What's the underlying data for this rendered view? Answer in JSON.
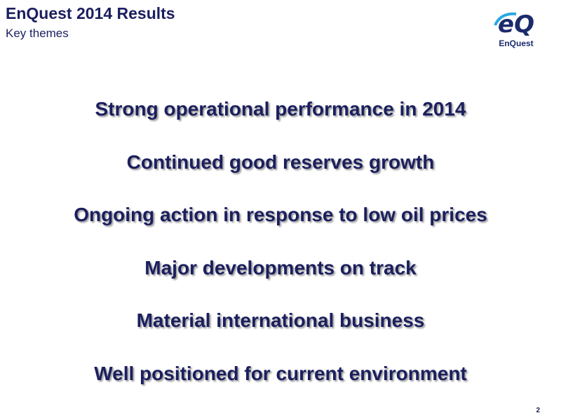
{
  "header": {
    "title": "EnQuest 2014 Results",
    "subtitle": "Key themes",
    "logo_text": "EnQuest"
  },
  "themes": [
    "Strong operational performance in 2014",
    "Continued good reserves growth",
    "Ongoing action in response to low oil prices",
    "Major developments on track",
    "Material international business",
    "Well positioned for current environment"
  ],
  "footer": {
    "page_number": "2"
  }
}
